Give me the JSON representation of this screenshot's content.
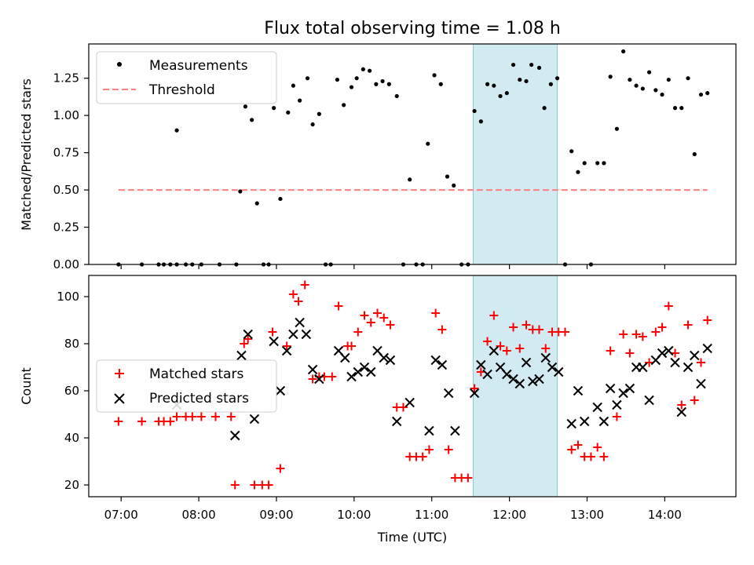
{
  "title": "Flux total observing time = 1.08 h",
  "colors": {
    "measurement": "#000000",
    "threshold": "#ff7f7f",
    "matched": "#ff0000",
    "predicted": "#000000",
    "span": "#add8e6"
  },
  "chart_data": [
    {
      "type": "scatter",
      "ylabel": "Matched/Predicted stars",
      "ylim": [
        0,
        1.48
      ],
      "yticks": [
        "0.00",
        "0.25",
        "0.50",
        "0.75",
        "1.00",
        "1.25"
      ],
      "legend_position": "top-left",
      "shaded_region": {
        "x_start": "11:32",
        "x_end": "12:37"
      },
      "threshold": {
        "name": "Threshold",
        "value": 0.5,
        "x_start": "06:58",
        "x_end": "14:33"
      },
      "series": [
        {
          "name": "Measurements",
          "points": [
            [
              "06:58",
              0.0
            ],
            [
              "07:16",
              0.0
            ],
            [
              "07:29",
              0.0
            ],
            [
              "07:33",
              0.0
            ],
            [
              "07:38",
              0.0
            ],
            [
              "07:43",
              0.0
            ],
            [
              "07:43",
              0.9
            ],
            [
              "07:50",
              0.0
            ],
            [
              "07:55",
              0.0
            ],
            [
              "08:02",
              0.0
            ],
            [
              "08:16",
              0.0
            ],
            [
              "08:29",
              0.0
            ],
            [
              "08:32",
              0.49
            ],
            [
              "08:36",
              1.06
            ],
            [
              "08:41",
              0.97
            ],
            [
              "08:45",
              0.41
            ],
            [
              "08:50",
              0.0
            ],
            [
              "08:54",
              0.0
            ],
            [
              "08:58",
              1.05
            ],
            [
              "09:03",
              0.44
            ],
            [
              "09:09",
              1.02
            ],
            [
              "09:13",
              1.2
            ],
            [
              "09:18",
              1.1
            ],
            [
              "09:24",
              1.25
            ],
            [
              "09:28",
              0.94
            ],
            [
              "09:33",
              1.01
            ],
            [
              "09:38",
              0.0
            ],
            [
              "09:42",
              0.0
            ],
            [
              "09:47",
              1.24
            ],
            [
              "09:52",
              1.07
            ],
            [
              "09:58",
              1.19
            ],
            [
              "10:02",
              1.25
            ],
            [
              "10:07",
              1.31
            ],
            [
              "10:12",
              1.3
            ],
            [
              "10:17",
              1.21
            ],
            [
              "10:22",
              1.23
            ],
            [
              "10:27",
              1.21
            ],
            [
              "10:33",
              1.13
            ],
            [
              "10:38",
              0.0
            ],
            [
              "10:43",
              0.57
            ],
            [
              "10:48",
              0.0
            ],
            [
              "10:53",
              0.0
            ],
            [
              "10:57",
              0.81
            ],
            [
              "11:02",
              1.27
            ],
            [
              "11:07",
              1.21
            ],
            [
              "11:12",
              0.59
            ],
            [
              "11:17",
              0.53
            ],
            [
              "11:23",
              0.0
            ],
            [
              "11:28",
              0.0
            ],
            [
              "11:33",
              1.03
            ],
            [
              "11:38",
              0.96
            ],
            [
              "11:43",
              1.21
            ],
            [
              "11:48",
              1.2
            ],
            [
              "11:53",
              1.13
            ],
            [
              "11:58",
              1.15
            ],
            [
              "12:03",
              1.34
            ],
            [
              "12:08",
              1.24
            ],
            [
              "12:13",
              1.23
            ],
            [
              "12:17",
              1.34
            ],
            [
              "12:23",
              1.32
            ],
            [
              "12:27",
              1.05
            ],
            [
              "12:32",
              1.21
            ],
            [
              "12:37",
              1.25
            ],
            [
              "12:43",
              0.0
            ],
            [
              "12:48",
              0.76
            ],
            [
              "12:53",
              0.62
            ],
            [
              "12:58",
              0.68
            ],
            [
              "13:03",
              0.0
            ],
            [
              "13:08",
              0.68
            ],
            [
              "13:13",
              0.68
            ],
            [
              "13:18",
              1.26
            ],
            [
              "13:23",
              0.91
            ],
            [
              "13:28",
              1.43
            ],
            [
              "13:33",
              1.24
            ],
            [
              "13:38",
              1.2
            ],
            [
              "13:43",
              1.18
            ],
            [
              "13:48",
              1.29
            ],
            [
              "13:53",
              1.17
            ],
            [
              "13:58",
              1.14
            ],
            [
              "14:03",
              1.24
            ],
            [
              "14:08",
              1.05
            ],
            [
              "14:13",
              1.05
            ],
            [
              "14:18",
              1.25
            ],
            [
              "14:23",
              0.74
            ],
            [
              "14:28",
              1.14
            ],
            [
              "14:33",
              1.15
            ]
          ]
        }
      ]
    },
    {
      "type": "scatter",
      "xlabel": "Time (UTC)",
      "ylabel": "Count",
      "ylim": [
        15,
        109
      ],
      "yticks": [
        "20",
        "40",
        "60",
        "80",
        "100"
      ],
      "xlim": [
        "06:35",
        "14:55"
      ],
      "xticks": [
        "07:00",
        "08:00",
        "09:00",
        "10:00",
        "11:00",
        "12:00",
        "13:00",
        "14:00"
      ],
      "legend_position": "center-left",
      "shaded_region": {
        "x_start": "11:32",
        "x_end": "12:37"
      },
      "series": [
        {
          "name": "Matched stars",
          "marker": "plus",
          "points": [
            [
              "06:58",
              47
            ],
            [
              "07:16",
              47
            ],
            [
              "07:29",
              47
            ],
            [
              "07:33",
              47
            ],
            [
              "07:38",
              47
            ],
            [
              "07:43",
              49
            ],
            [
              "07:50",
              49
            ],
            [
              "07:55",
              49
            ],
            [
              "08:02",
              49
            ],
            [
              "08:13",
              49
            ],
            [
              "08:25",
              49
            ],
            [
              "08:28",
              20
            ],
            [
              "08:35",
              80
            ],
            [
              "08:38",
              82
            ],
            [
              "08:43",
              20
            ],
            [
              "08:49",
              20
            ],
            [
              "08:54",
              20
            ],
            [
              "08:57",
              85
            ],
            [
              "09:03",
              27
            ],
            [
              "09:08",
              79
            ],
            [
              "09:13",
              101
            ],
            [
              "09:17",
              98
            ],
            [
              "09:22",
              105
            ],
            [
              "09:28",
              65
            ],
            [
              "09:33",
              66
            ],
            [
              "09:37",
              66
            ],
            [
              "09:43",
              66
            ],
            [
              "09:48",
              96
            ],
            [
              "09:55",
              79
            ],
            [
              "09:58",
              79
            ],
            [
              "10:03",
              85
            ],
            [
              "10:08",
              92
            ],
            [
              "10:13",
              89
            ],
            [
              "10:18",
              93
            ],
            [
              "10:23",
              91
            ],
            [
              "10:28",
              88
            ],
            [
              "10:33",
              53
            ],
            [
              "10:38",
              53
            ],
            [
              "10:43",
              32
            ],
            [
              "10:48",
              32
            ],
            [
              "10:53",
              32
            ],
            [
              "10:58",
              35
            ],
            [
              "11:03",
              93
            ],
            [
              "11:08",
              86
            ],
            [
              "11:13",
              35
            ],
            [
              "11:18",
              23
            ],
            [
              "11:23",
              23
            ],
            [
              "11:28",
              23
            ],
            [
              "11:33",
              61
            ],
            [
              "11:38",
              68
            ],
            [
              "11:43",
              81
            ],
            [
              "11:48",
              92
            ],
            [
              "11:53",
              79
            ],
            [
              "11:58",
              77
            ],
            [
              "12:03",
              87
            ],
            [
              "12:08",
              78
            ],
            [
              "12:13",
              88
            ],
            [
              "12:18",
              86
            ],
            [
              "12:23",
              86
            ],
            [
              "12:28",
              78
            ],
            [
              "12:33",
              85
            ],
            [
              "12:38",
              85
            ],
            [
              "12:43",
              85
            ],
            [
              "12:48",
              35
            ],
            [
              "12:53",
              37
            ],
            [
              "12:58",
              32
            ],
            [
              "13:03",
              32
            ],
            [
              "13:08",
              36
            ],
            [
              "13:13",
              32
            ],
            [
              "13:18",
              77
            ],
            [
              "13:23",
              49
            ],
            [
              "13:28",
              84
            ],
            [
              "13:33",
              76
            ],
            [
              "13:38",
              84
            ],
            [
              "13:43",
              83
            ],
            [
              "13:48",
              72
            ],
            [
              "13:53",
              85
            ],
            [
              "13:58",
              87
            ],
            [
              "14:03",
              96
            ],
            [
              "14:08",
              76
            ],
            [
              "14:13",
              54
            ],
            [
              "14:18",
              88
            ],
            [
              "14:23",
              56
            ],
            [
              "14:28",
              72
            ],
            [
              "14:33",
              90
            ]
          ]
        },
        {
          "name": "Predicted stars",
          "marker": "x",
          "points": [
            [
              "07:43",
              54
            ],
            [
              "08:28",
              41
            ],
            [
              "08:33",
              75
            ],
            [
              "08:38",
              84
            ],
            [
              "08:43",
              48
            ],
            [
              "08:58",
              81
            ],
            [
              "09:03",
              60
            ],
            [
              "09:08",
              77
            ],
            [
              "09:13",
              84
            ],
            [
              "09:18",
              89
            ],
            [
              "09:23",
              84
            ],
            [
              "09:28",
              69
            ],
            [
              "09:33",
              65
            ],
            [
              "09:48",
              77
            ],
            [
              "09:53",
              74
            ],
            [
              "09:58",
              66
            ],
            [
              "10:03",
              68
            ],
            [
              "10:08",
              70
            ],
            [
              "10:13",
              68
            ],
            [
              "10:18",
              77
            ],
            [
              "10:23",
              74
            ],
            [
              "10:28",
              73
            ],
            [
              "10:33",
              47
            ],
            [
              "10:43",
              55
            ],
            [
              "10:58",
              43
            ],
            [
              "11:03",
              73
            ],
            [
              "11:08",
              71
            ],
            [
              "11:13",
              59
            ],
            [
              "11:18",
              43
            ],
            [
              "11:33",
              59
            ],
            [
              "11:38",
              71
            ],
            [
              "11:43",
              67
            ],
            [
              "11:48",
              77
            ],
            [
              "11:53",
              70
            ],
            [
              "11:58",
              67
            ],
            [
              "12:03",
              65
            ],
            [
              "12:08",
              63
            ],
            [
              "12:13",
              72
            ],
            [
              "12:18",
              64
            ],
            [
              "12:23",
              65
            ],
            [
              "12:28",
              74
            ],
            [
              "12:33",
              70
            ],
            [
              "12:38",
              68
            ],
            [
              "12:48",
              46
            ],
            [
              "12:53",
              60
            ],
            [
              "12:58",
              47
            ],
            [
              "13:08",
              53
            ],
            [
              "13:13",
              47
            ],
            [
              "13:18",
              61
            ],
            [
              "13:23",
              54
            ],
            [
              "13:28",
              59
            ],
            [
              "13:33",
              61
            ],
            [
              "13:38",
              70
            ],
            [
              "13:43",
              70
            ],
            [
              "13:48",
              56
            ],
            [
              "13:53",
              73
            ],
            [
              "13:58",
              76
            ],
            [
              "14:03",
              77
            ],
            [
              "14:08",
              72
            ],
            [
              "14:13",
              51
            ],
            [
              "14:18",
              70
            ],
            [
              "14:23",
              75
            ],
            [
              "14:28",
              63
            ],
            [
              "14:33",
              78
            ]
          ]
        }
      ]
    }
  ]
}
